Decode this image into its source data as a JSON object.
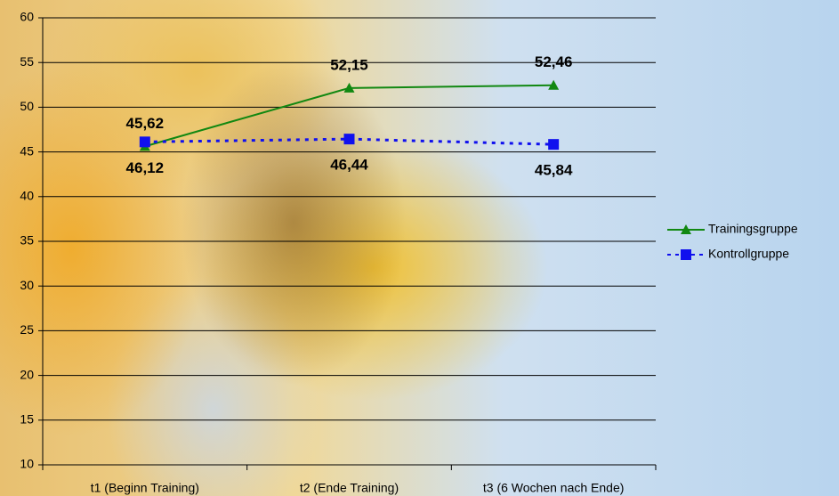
{
  "chart_data": {
    "type": "line",
    "categories": [
      "t1 (Beginn Training)",
      "t2 (Ende Training)",
      "t3 (6 Wochen nach Ende)"
    ],
    "series": [
      {
        "name": "Trainingsgruppe",
        "color": "#118811",
        "marker": "triangle",
        "dash": false,
        "values": [
          45.62,
          52.15,
          52.46
        ],
        "value_labels": [
          "45,62",
          "52,15",
          "52,46"
        ]
      },
      {
        "name": "Kontrollgruppe",
        "color": "#1010ee",
        "marker": "square",
        "dash": true,
        "values": [
          46.12,
          46.44,
          45.84
        ],
        "value_labels": [
          "46,12",
          "46,44",
          "45,84"
        ]
      }
    ],
    "ylim": [
      10,
      60
    ],
    "yticks": [
      10,
      15,
      20,
      25,
      30,
      35,
      40,
      45,
      50,
      55,
      60
    ],
    "grid": true,
    "legend": "right"
  }
}
